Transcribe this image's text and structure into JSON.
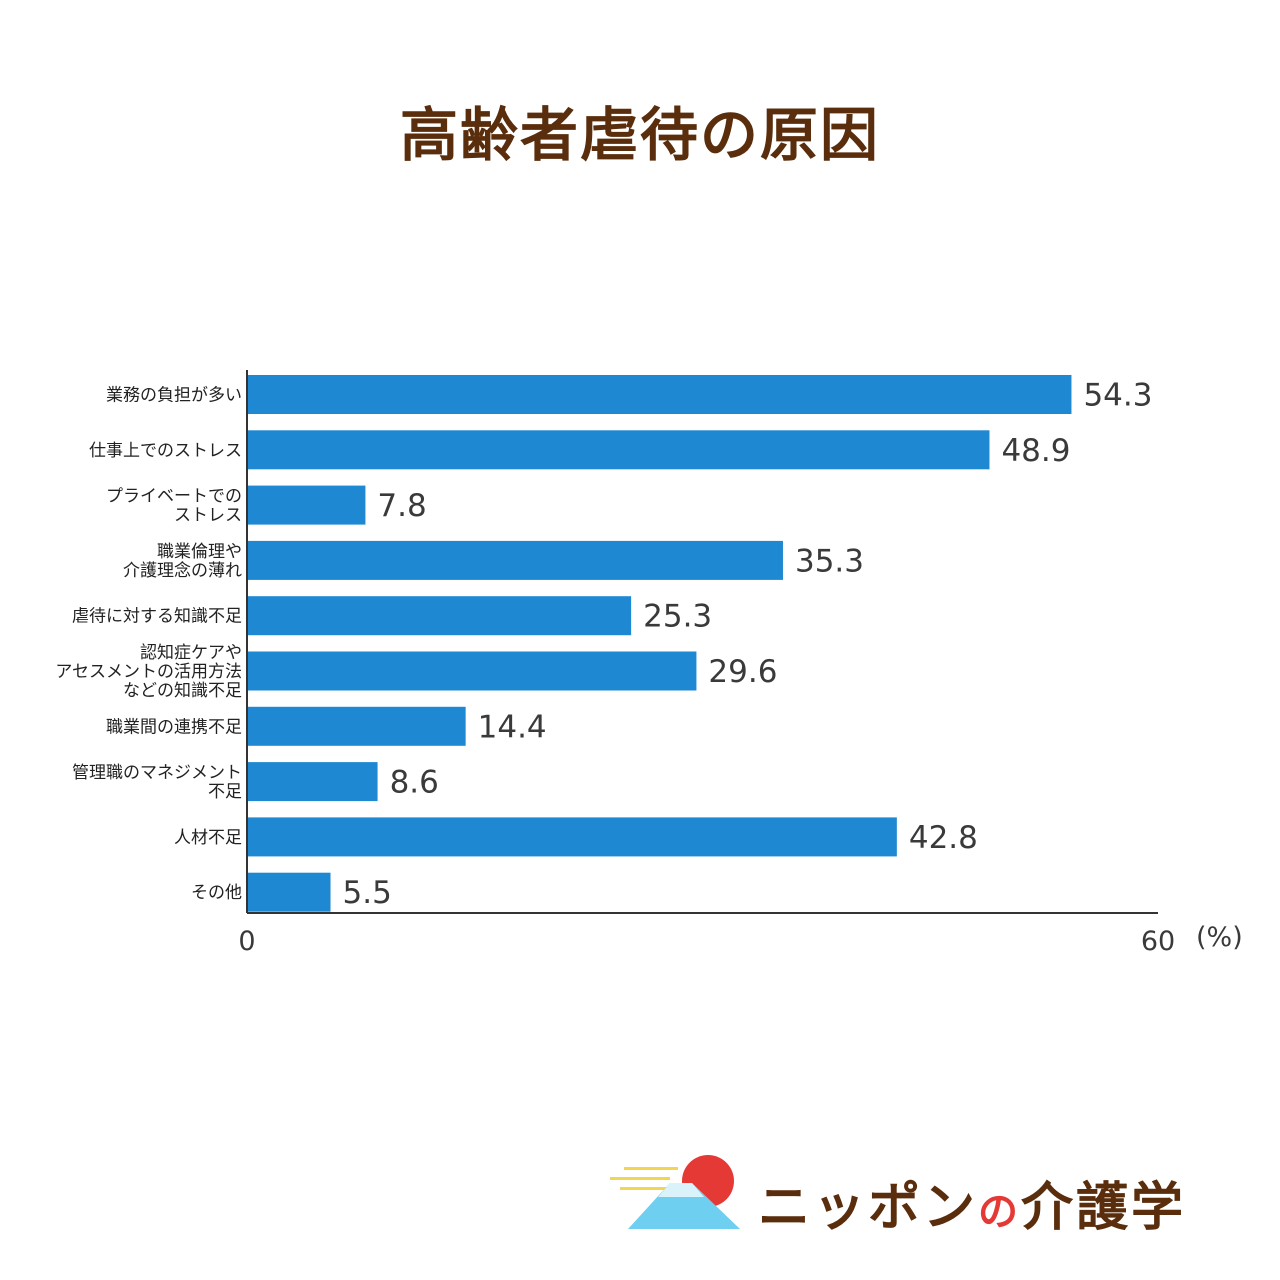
{
  "title": "高齢者虐待の原因",
  "chart_data": {
    "type": "bar",
    "orientation": "horizontal",
    "categories": [
      [
        "業務の負担が多い"
      ],
      [
        "仕事上でのストレス"
      ],
      [
        "プライベートでの",
        "ストレス"
      ],
      [
        "職業倫理や",
        "介護理念の薄れ"
      ],
      [
        "虐待に対する知識不足"
      ],
      [
        "認知症ケアや",
        "アセスメントの活用方法",
        "などの知識不足"
      ],
      [
        "職業間の連携不足"
      ],
      [
        "管理職のマネジメント",
        "不足"
      ],
      [
        "人材不足"
      ],
      [
        "その他"
      ]
    ],
    "values": [
      54.3,
      48.9,
      7.8,
      35.3,
      25.3,
      29.6,
      14.4,
      8.6,
      42.8,
      5.5
    ],
    "value_labels": [
      "54.3",
      "48.9",
      "7.8",
      "35.3",
      "25.3",
      "29.6",
      "14.4",
      "8.6",
      "42.8",
      "5.5"
    ],
    "xlim": [
      0,
      60
    ],
    "x_ticks": [
      "0",
      "60"
    ],
    "unit": "(%)",
    "bar_color": "#1e88d2",
    "axis_color": "#333333",
    "grid": false
  },
  "logo": {
    "text_main": "ニッポン",
    "text_no": "の",
    "text_end": "介護学",
    "sun_color": "#e53935",
    "sky_color": "#6ecff0",
    "cloud_color": "#f2d552"
  }
}
